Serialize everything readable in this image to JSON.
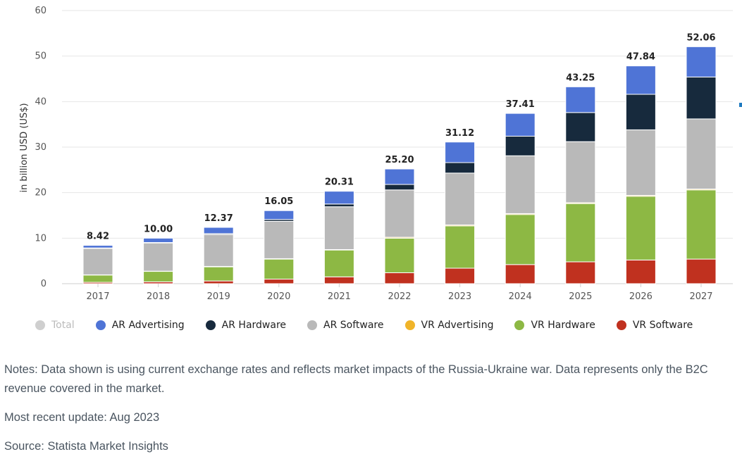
{
  "chart_data": {
    "type": "bar",
    "stacked": true,
    "ylabel": "in billion USD (US$)",
    "ylim": [
      0,
      60
    ],
    "yticks": [
      0,
      10,
      20,
      30,
      40,
      50,
      60
    ],
    "grid": true,
    "categories": [
      "2017",
      "2018",
      "2019",
      "2020",
      "2021",
      "2022",
      "2023",
      "2024",
      "2025",
      "2026",
      "2027"
    ],
    "totals": [
      "8.42",
      "10.00",
      "12.37",
      "16.05",
      "20.31",
      "25.20",
      "31.12",
      "37.41",
      "43.25",
      "47.84",
      "52.06"
    ],
    "series": [
      {
        "name": "VR Software",
        "color": "#c0311f",
        "values": [
          0.3,
          0.4,
          0.6,
          1.0,
          1.5,
          2.4,
          3.4,
          4.2,
          4.8,
          5.2,
          5.4
        ]
      },
      {
        "name": "VR Hardware",
        "color": "#8db844",
        "values": [
          1.6,
          2.3,
          3.1,
          4.4,
          5.9,
          7.6,
          9.3,
          11.0,
          12.8,
          14.0,
          15.2
        ]
      },
      {
        "name": "VR Advertising",
        "color": "#f0b429",
        "values": [
          0.05,
          0.05,
          0.1,
          0.1,
          0.1,
          0.2,
          0.2,
          0.2,
          0.2,
          0.2,
          0.2
        ]
      },
      {
        "name": "AR Software",
        "color": "#b9b9b9",
        "values": [
          5.8,
          6.2,
          7.0,
          8.2,
          9.4,
          10.4,
          11.4,
          12.7,
          13.4,
          14.4,
          15.4
        ]
      },
      {
        "name": "AR Hardware",
        "color": "#172a3d",
        "values": [
          0.1,
          0.1,
          0.2,
          0.4,
          0.6,
          1.2,
          2.3,
          4.3,
          6.4,
          7.8,
          9.2
        ]
      },
      {
        "name": "AR Advertising",
        "color": "#4f74d6",
        "values": [
          0.57,
          0.95,
          1.37,
          1.95,
          2.81,
          3.4,
          4.52,
          5.01,
          5.65,
          6.24,
          6.66
        ]
      }
    ],
    "legend_position": "bottom"
  },
  "legend": [
    {
      "label": "Total",
      "color": "#cfcfcf"
    },
    {
      "label": "AR Advertising",
      "color": "#4f74d6"
    },
    {
      "label": "AR Hardware",
      "color": "#172a3d"
    },
    {
      "label": "AR Software",
      "color": "#b9b9b9"
    },
    {
      "label": "VR Advertising",
      "color": "#f0b429"
    },
    {
      "label": "VR Hardware",
      "color": "#8db844"
    },
    {
      "label": "VR Software",
      "color": "#c0311f"
    }
  ],
  "notes": {
    "text": "Notes: Data shown is using current exchange rates and reflects market impacts of the Russia-Ukraine war. Data represents only the B2C revenue covered in the market.",
    "update": "Most recent update: Aug 2023",
    "source": "Source: Statista Market Insights"
  }
}
